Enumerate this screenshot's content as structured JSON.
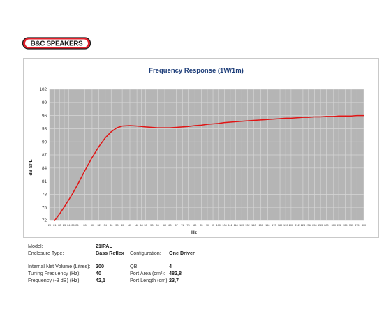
{
  "brand": {
    "logo_text": "B&C SPEAKERS",
    "colors": {
      "red": "#e3202b",
      "black": "#1a1a1a"
    }
  },
  "chart_data": {
    "type": "line",
    "title": "Frequency Response (1W/1m)",
    "xlabel": "Hz",
    "ylabel": "dB SPL",
    "x_scale": "log",
    "xlim": [
      20,
      400
    ],
    "ylim": [
      72,
      102
    ],
    "grid": true,
    "yticks": [
      72,
      75,
      78,
      81,
      84,
      87,
      90,
      93,
      96,
      99,
      102
    ],
    "xticks": [
      20,
      21,
      22,
      23,
      24,
      25,
      26,
      28,
      30,
      32,
      34,
      36,
      38,
      40,
      43,
      46,
      48,
      50,
      53,
      56,
      60,
      63,
      67,
      71,
      75,
      80,
      85,
      90,
      95,
      100,
      106,
      112,
      118,
      125,
      132,
      140,
      150,
      160,
      170,
      180,
      190,
      200,
      212,
      224,
      236,
      250,
      265,
      280,
      300,
      315,
      335,
      355,
      375,
      400
    ],
    "colors": {
      "plot_bg": "#b5b5b5",
      "grid": "#d6d6d6",
      "line": "#e01515",
      "title": "#1f3f7a"
    },
    "series": [
      {
        "x": [
          21,
          22,
          23,
          24,
          25,
          26,
          28,
          30,
          32,
          34,
          36,
          38,
          40,
          43,
          46,
          48,
          50,
          53,
          56,
          60,
          63,
          67,
          71,
          75,
          80,
          85,
          90,
          95,
          100,
          106,
          112,
          118,
          125,
          132,
          140,
          150,
          160,
          170,
          180,
          190,
          200,
          212,
          224,
          236,
          250,
          265,
          280,
          300,
          315,
          335,
          355,
          375,
          400
        ],
        "y": [
          72.0,
          73.5,
          75.1,
          76.7,
          78.3,
          80.0,
          83.4,
          86.4,
          88.9,
          90.9,
          92.3,
          93.2,
          93.6,
          93.7,
          93.6,
          93.5,
          93.4,
          93.3,
          93.2,
          93.2,
          93.2,
          93.3,
          93.4,
          93.5,
          93.7,
          93.8,
          94.0,
          94.1,
          94.2,
          94.4,
          94.5,
          94.6,
          94.7,
          94.8,
          94.9,
          95.0,
          95.1,
          95.2,
          95.3,
          95.4,
          95.4,
          95.5,
          95.6,
          95.6,
          95.7,
          95.7,
          95.8,
          95.8,
          95.9,
          95.9,
          95.9,
          96.0,
          96.0
        ]
      }
    ]
  },
  "specs": {
    "model_label": "Model:",
    "model_value": "21IPAL",
    "enclosure_label": "Enclosure Type:",
    "enclosure_value": "Bass Reflex",
    "config_label": "Configuration:",
    "config_value": "One Driver",
    "volume_label": "Internal Net Volume (Litres):",
    "volume_value": "200",
    "qb_label": "QB:",
    "qb_value": "4",
    "tuning_label": "Tuning Frequency (Hz):",
    "tuning_value": "40",
    "port_area_label": "Port Area (cm²):",
    "port_area_value": "482,8",
    "f3_label": "Frequency (-3 dB) (Hz):",
    "f3_value": "42,1",
    "port_length_label": "Port Length (cm):",
    "port_length_value": "23,7"
  }
}
